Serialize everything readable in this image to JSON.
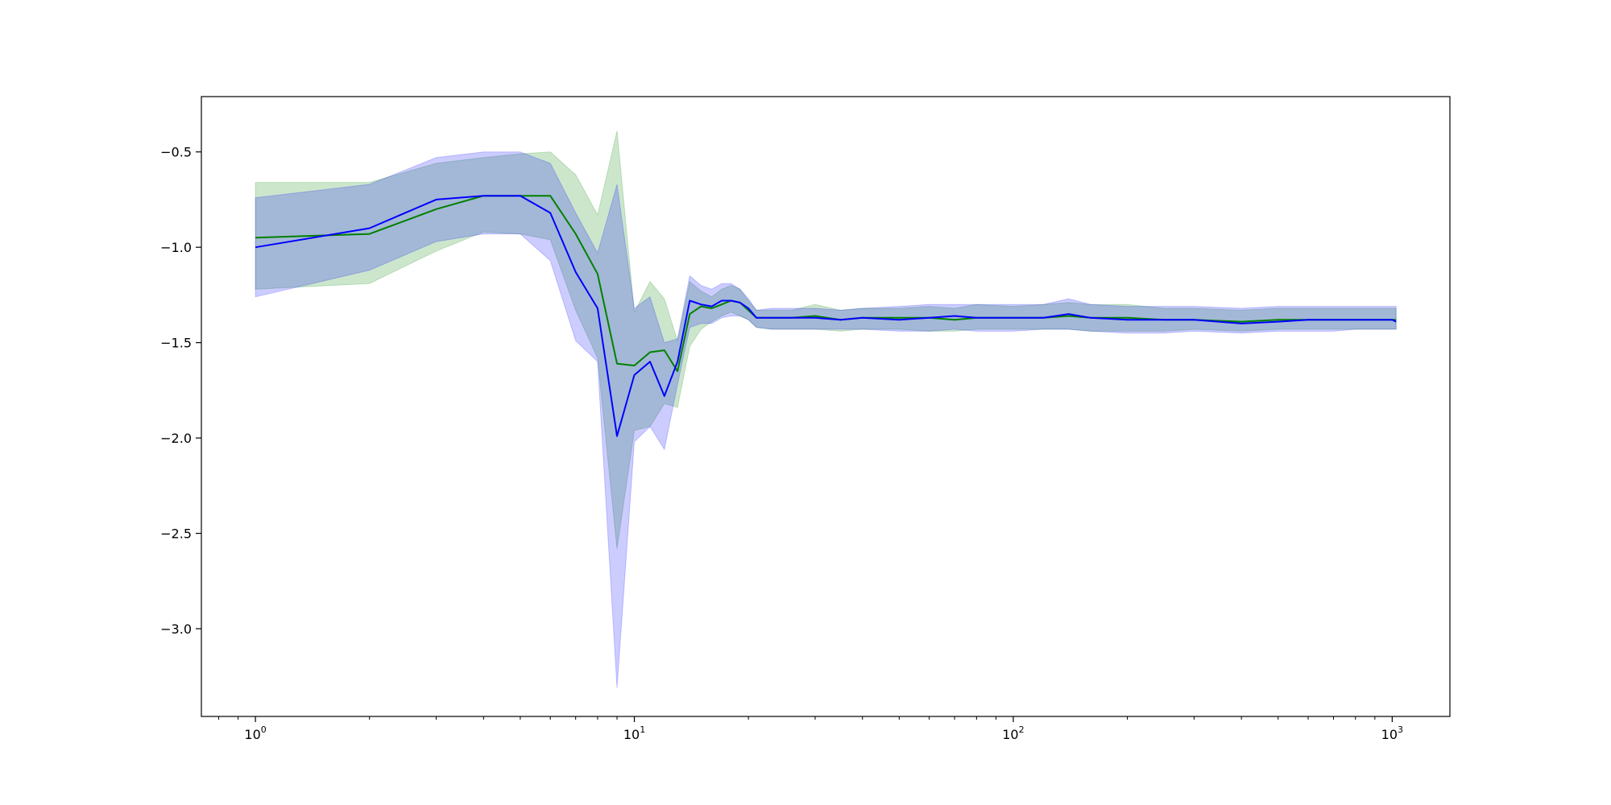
{
  "chart_data": {
    "type": "line",
    "title": "",
    "xlabel": "",
    "ylabel": "",
    "xscale": "log",
    "xlim": [
      0.72,
      1420
    ],
    "ylim": [
      -3.46,
      -0.21
    ],
    "grid": false,
    "x_ticks": [
      {
        "value": 1,
        "base": "10",
        "exp": "0"
      },
      {
        "value": 10,
        "base": "10",
        "exp": "1"
      },
      {
        "value": 100,
        "base": "10",
        "exp": "2"
      },
      {
        "value": 1000,
        "base": "10",
        "exp": "3"
      }
    ],
    "y_ticks": [
      {
        "value": -0.5,
        "label": "−0.5"
      },
      {
        "value": -1.0,
        "label": "−1.0"
      },
      {
        "value": -1.5,
        "label": "−1.5"
      },
      {
        "value": -2.0,
        "label": "−2.0"
      },
      {
        "value": -2.5,
        "label": "−2.5"
      },
      {
        "value": -3.0,
        "label": "−3.0"
      }
    ],
    "colors": {
      "green": "#008000",
      "blue": "#0000ff",
      "green_band": "rgba(0,128,0,0.2)",
      "blue_band": "rgba(0,0,255,0.2)"
    },
    "series": [
      {
        "color": "#008000",
        "band_color": "rgba(0,128,0,0.2)",
        "x": [
          1,
          2,
          3,
          4,
          5,
          6,
          7,
          8,
          9,
          10,
          11,
          12,
          13,
          14,
          15,
          16,
          17,
          18,
          19,
          20,
          21,
          23,
          26,
          30,
          35,
          40,
          50,
          60,
          70,
          80,
          100,
          120,
          140,
          160,
          200,
          250,
          300,
          400,
          500,
          600,
          700,
          800,
          900,
          1000,
          1024
        ],
        "y": [
          -0.95,
          -0.93,
          -0.8,
          -0.73,
          -0.73,
          -0.73,
          -0.93,
          -1.14,
          -1.61,
          -1.62,
          -1.55,
          -1.54,
          -1.65,
          -1.35,
          -1.31,
          -1.32,
          -1.3,
          -1.28,
          -1.29,
          -1.33,
          -1.37,
          -1.37,
          -1.37,
          -1.36,
          -1.38,
          -1.37,
          -1.37,
          -1.37,
          -1.38,
          -1.37,
          -1.37,
          -1.37,
          -1.36,
          -1.37,
          -1.37,
          -1.38,
          -1.38,
          -1.39,
          -1.38,
          -1.38,
          -1.38,
          -1.38,
          -1.38,
          -1.38,
          -1.38
        ],
        "lower": [
          -1.22,
          -1.19,
          -1.02,
          -0.92,
          -0.93,
          -0.96,
          -1.33,
          -1.58,
          -2.58,
          -1.96,
          -1.94,
          -1.82,
          -1.84,
          -1.52,
          -1.43,
          -1.39,
          -1.36,
          -1.34,
          -1.36,
          -1.38,
          -1.42,
          -1.43,
          -1.43,
          -1.43,
          -1.44,
          -1.43,
          -1.43,
          -1.44,
          -1.44,
          -1.43,
          -1.43,
          -1.43,
          -1.43,
          -1.44,
          -1.44,
          -1.44,
          -1.43,
          -1.44,
          -1.43,
          -1.43,
          -1.43,
          -1.43,
          -1.43,
          -1.43,
          -1.43
        ],
        "upper": [
          -0.66,
          -0.66,
          -0.56,
          -0.53,
          -0.51,
          -0.5,
          -0.62,
          -0.83,
          -0.39,
          -1.34,
          -1.18,
          -1.27,
          -1.49,
          -1.18,
          -1.23,
          -1.26,
          -1.22,
          -1.2,
          -1.22,
          -1.28,
          -1.33,
          -1.33,
          -1.33,
          -1.3,
          -1.33,
          -1.32,
          -1.32,
          -1.31,
          -1.32,
          -1.3,
          -1.31,
          -1.3,
          -1.29,
          -1.3,
          -1.3,
          -1.32,
          -1.32,
          -1.33,
          -1.32,
          -1.32,
          -1.32,
          -1.32,
          -1.32,
          -1.32,
          -1.32
        ]
      },
      {
        "color": "#0000ff",
        "band_color": "rgba(0,0,255,0.2)",
        "x": [
          1,
          2,
          3,
          4,
          5,
          6,
          7,
          8,
          9,
          10,
          11,
          12,
          13,
          14,
          15,
          16,
          17,
          18,
          19,
          20,
          21,
          23,
          26,
          30,
          35,
          40,
          50,
          60,
          70,
          80,
          100,
          120,
          140,
          160,
          200,
          250,
          300,
          400,
          500,
          600,
          700,
          800,
          900,
          1000,
          1024
        ],
        "y": [
          -1.0,
          -0.9,
          -0.75,
          -0.73,
          -0.73,
          -0.82,
          -1.13,
          -1.32,
          -1.99,
          -1.67,
          -1.6,
          -1.78,
          -1.6,
          -1.28,
          -1.3,
          -1.31,
          -1.28,
          -1.28,
          -1.29,
          -1.32,
          -1.37,
          -1.37,
          -1.37,
          -1.37,
          -1.38,
          -1.37,
          -1.38,
          -1.37,
          -1.36,
          -1.37,
          -1.37,
          -1.37,
          -1.35,
          -1.37,
          -1.38,
          -1.38,
          -1.38,
          -1.4,
          -1.39,
          -1.38,
          -1.38,
          -1.38,
          -1.38,
          -1.38,
          -1.39
        ],
        "lower": [
          -1.26,
          -1.12,
          -0.97,
          -0.93,
          -0.93,
          -1.07,
          -1.49,
          -1.6,
          -3.31,
          -2.02,
          -1.94,
          -2.06,
          -1.72,
          -1.42,
          -1.4,
          -1.4,
          -1.37,
          -1.36,
          -1.36,
          -1.38,
          -1.42,
          -1.43,
          -1.43,
          -1.43,
          -1.43,
          -1.43,
          -1.44,
          -1.44,
          -1.43,
          -1.44,
          -1.44,
          -1.43,
          -1.43,
          -1.44,
          -1.45,
          -1.45,
          -1.44,
          -1.45,
          -1.44,
          -1.44,
          -1.44,
          -1.43,
          -1.43,
          -1.43,
          -1.43
        ],
        "upper": [
          -0.74,
          -0.67,
          -0.53,
          -0.5,
          -0.5,
          -0.56,
          -0.82,
          -1.03,
          -0.67,
          -1.32,
          -1.26,
          -1.5,
          -1.48,
          -1.15,
          -1.2,
          -1.22,
          -1.19,
          -1.19,
          -1.22,
          -1.27,
          -1.33,
          -1.32,
          -1.32,
          -1.32,
          -1.33,
          -1.32,
          -1.31,
          -1.3,
          -1.3,
          -1.3,
          -1.3,
          -1.3,
          -1.27,
          -1.3,
          -1.31,
          -1.31,
          -1.31,
          -1.32,
          -1.31,
          -1.31,
          -1.31,
          -1.31,
          -1.31,
          -1.31,
          -1.31
        ]
      }
    ]
  }
}
